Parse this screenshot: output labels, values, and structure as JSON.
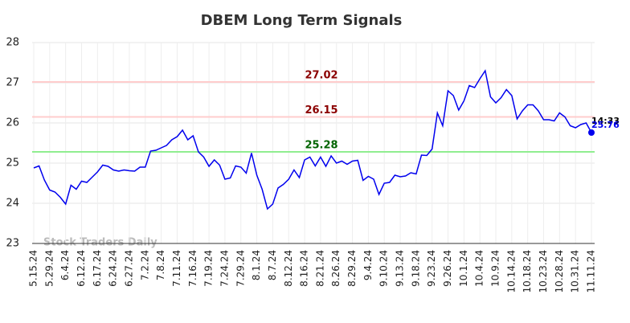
{
  "chart_data": {
    "type": "line",
    "title": "DBEM Long Term Signals",
    "watermark": "Stock Traders Daily",
    "categories": [
      "5.15.24",
      null,
      null,
      "5.29.24",
      null,
      null,
      "6.4.24",
      null,
      null,
      "6.12.24",
      null,
      null,
      "6.17.24",
      null,
      null,
      "6.24.24",
      null,
      null,
      "6.27.24",
      null,
      null,
      "7.2.24",
      null,
      null,
      "7.8.24",
      null,
      null,
      "7.11.24",
      null,
      null,
      "7.16.24",
      null,
      null,
      "7.19.24",
      null,
      null,
      "7.24.24",
      null,
      null,
      "7.29.24",
      null,
      null,
      "8.1.24",
      null,
      null,
      "8.7.24",
      null,
      null,
      "8.12.24",
      null,
      null,
      "8.16.24",
      null,
      null,
      "8.21.24",
      null,
      null,
      "8.26.24",
      null,
      null,
      "8.29.24",
      null,
      null,
      "9.4.24",
      null,
      null,
      "9.10.24",
      null,
      null,
      "9.13.24",
      null,
      null,
      "9.18.24",
      null,
      null,
      "9.23.24",
      null,
      null,
      "9.26.24",
      null,
      null,
      "10.1.24",
      null,
      null,
      "10.4.24",
      null,
      null,
      "10.9.24",
      null,
      null,
      "10.14.24",
      null,
      null,
      "10.18.24",
      null,
      null,
      "10.23.24",
      null,
      null,
      "10.28.24",
      null,
      null,
      "10.31.24",
      null,
      null,
      "11.11.24"
    ],
    "values": [
      24.88,
      24.93,
      24.58,
      24.33,
      24.28,
      24.15,
      23.98,
      24.45,
      24.35,
      24.55,
      24.52,
      24.65,
      24.78,
      24.95,
      24.92,
      24.83,
      24.8,
      24.83,
      24.81,
      24.8,
      24.9,
      24.9,
      25.3,
      25.32,
      25.38,
      25.44,
      25.58,
      25.66,
      25.82,
      25.58,
      25.68,
      25.28,
      25.15,
      24.92,
      25.08,
      24.95,
      24.6,
      24.63,
      24.93,
      24.9,
      24.75,
      25.25,
      24.7,
      24.35,
      23.86,
      23.98,
      24.38,
      24.47,
      24.6,
      24.83,
      24.64,
      25.08,
      25.15,
      24.93,
      25.15,
      24.92,
      25.18,
      25.0,
      25.05,
      24.97,
      25.05,
      25.07,
      24.57,
      24.67,
      24.6,
      24.22,
      24.5,
      24.52,
      24.7,
      24.66,
      24.68,
      24.76,
      24.73,
      25.2,
      25.19,
      25.35,
      26.25,
      25.93,
      26.8,
      26.68,
      26.32,
      26.55,
      26.93,
      26.88,
      27.1,
      27.3,
      26.65,
      26.5,
      26.63,
      26.83,
      26.68,
      26.1,
      26.3,
      26.45,
      26.45,
      26.3,
      26.08,
      26.08,
      26.05,
      26.25,
      26.15,
      25.93,
      25.88,
      25.96,
      26.0,
      25.76
    ],
    "color": "#0000ee",
    "last_time": "14:33",
    "reference_lines": [
      {
        "value": 27.02,
        "color": "#ffcccc",
        "label_color": "#8b0000"
      },
      {
        "value": 26.15,
        "color": "#ffcccc",
        "label_color": "#8b0000"
      },
      {
        "value": 25.28,
        "color": "#90ee90",
        "label_color": "#006400"
      }
    ],
    "ylim": [
      23,
      28
    ],
    "yticks": [
      23,
      24,
      25,
      26,
      27,
      28
    ],
    "grid": true
  }
}
